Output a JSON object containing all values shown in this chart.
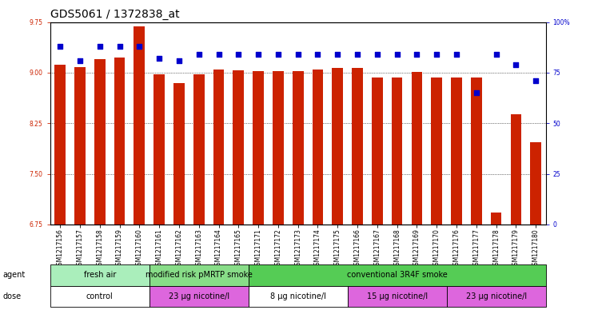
{
  "title": "GDS5061 / 1372838_at",
  "samples": [
    "GSM1217156",
    "GSM1217157",
    "GSM1217158",
    "GSM1217159",
    "GSM1217160",
    "GSM1217161",
    "GSM1217162",
    "GSM1217163",
    "GSM1217164",
    "GSM1217165",
    "GSM1217171",
    "GSM1217172",
    "GSM1217173",
    "GSM1217174",
    "GSM1217175",
    "GSM1217166",
    "GSM1217167",
    "GSM1217168",
    "GSM1217169",
    "GSM1217170",
    "GSM1217176",
    "GSM1217177",
    "GSM1217178",
    "GSM1217179",
    "GSM1217180"
  ],
  "bar_values": [
    9.12,
    9.08,
    9.2,
    9.22,
    9.68,
    8.98,
    8.85,
    8.98,
    9.05,
    9.03,
    9.02,
    9.02,
    9.02,
    9.05,
    9.07,
    9.07,
    8.93,
    8.93,
    9.01,
    8.93,
    8.93,
    8.93,
    6.93,
    8.38,
    7.97
  ],
  "percentile_values": [
    88,
    81,
    88,
    88,
    88,
    82,
    81,
    84,
    84,
    84,
    84,
    84,
    84,
    84,
    84,
    84,
    84,
    84,
    84,
    84,
    84,
    65,
    84,
    79,
    71
  ],
  "bar_color": "#cc2200",
  "percentile_color": "#0000cc",
  "ylim_left": [
    6.75,
    9.75
  ],
  "ylim_right": [
    0,
    100
  ],
  "yticks_left": [
    6.75,
    7.5,
    8.25,
    9.0,
    9.75
  ],
  "yticks_right": [
    0,
    25,
    50,
    75,
    100
  ],
  "ytick_labels_right": [
    "0",
    "25",
    "50",
    "75",
    "100%"
  ],
  "gridlines": [
    7.5,
    8.25,
    9.0
  ],
  "agent_groups": [
    {
      "label": "fresh air",
      "start": 0,
      "end": 5,
      "color": "#aaeebb"
    },
    {
      "label": "modified risk pMRTP smoke",
      "start": 5,
      "end": 10,
      "color": "#88dd88"
    },
    {
      "label": "conventional 3R4F smoke",
      "start": 10,
      "end": 25,
      "color": "#55cc55"
    }
  ],
  "dose_groups": [
    {
      "label": "control",
      "start": 0,
      "end": 5,
      "color": "#ffffff"
    },
    {
      "label": "23 μg nicotine/l",
      "start": 5,
      "end": 10,
      "color": "#dd66dd"
    },
    {
      "label": "8 μg nicotine/l",
      "start": 10,
      "end": 15,
      "color": "#ffffff"
    },
    {
      "label": "15 μg nicotine/l",
      "start": 15,
      "end": 20,
      "color": "#dd66dd"
    },
    {
      "label": "23 μg nicotine/l",
      "start": 20,
      "end": 25,
      "color": "#dd66dd"
    }
  ],
  "background_color": "#ffffff",
  "title_fontsize": 10,
  "bar_label_fontsize": 5.5,
  "annot_fontsize": 7,
  "legend_fontsize": 7
}
